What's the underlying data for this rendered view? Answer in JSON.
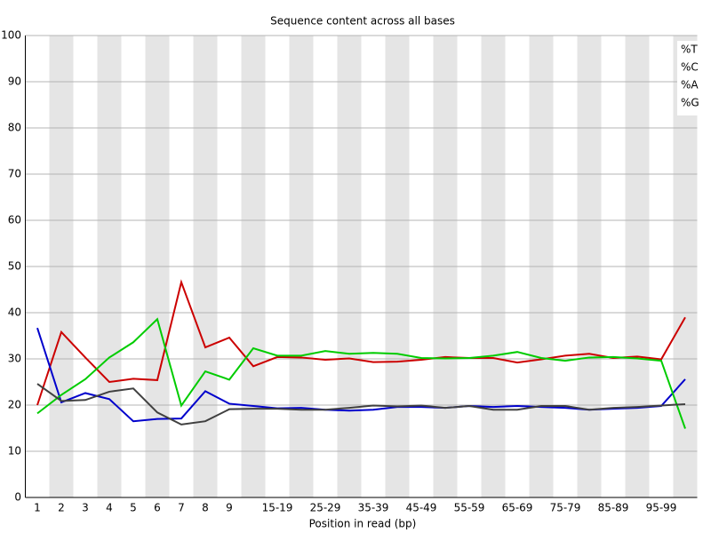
{
  "chart_data": {
    "type": "line",
    "title": "Sequence content across all bases",
    "x_label": "Position in read (bp)",
    "categories": [
      "1",
      "2",
      "3",
      "4",
      "5",
      "6",
      "7",
      "8",
      "9",
      null,
      "15-19",
      null,
      "25-29",
      null,
      "35-39",
      null,
      "45-49",
      null,
      "55-59",
      null,
      "65-69",
      null,
      "75-79",
      null,
      "85-89",
      null,
      "95-99",
      null
    ],
    "series": [
      {
        "name": "%T",
        "color": "#cc0000",
        "values": [
          20,
          35.8,
          30.3,
          25,
          25.7,
          25.4,
          46.6,
          32.5,
          34.6,
          28.4,
          30.4,
          30.3,
          29.8,
          30.1,
          29.3,
          29.4,
          29.8,
          30.4,
          30.2,
          30.2,
          29.2,
          29.9,
          30.7,
          31.1,
          30.2,
          30.5,
          29.9,
          39
        ]
      },
      {
        "name": "%C",
        "color": "#0000cc",
        "values": [
          36.7,
          20.6,
          22.6,
          21.3,
          16.5,
          17,
          17.1,
          23,
          20.3,
          19.8,
          19.3,
          19.4,
          19,
          18.8,
          19,
          19.6,
          19.6,
          19.4,
          19.8,
          19.6,
          19.8,
          19.6,
          19.4,
          19,
          19.2,
          19.4,
          19.8,
          25.6
        ]
      },
      {
        "name": "%A",
        "color": "#00cc00",
        "values": [
          18.2,
          22.2,
          25.6,
          30.3,
          33.6,
          38.6,
          19.9,
          27.3,
          25.5,
          32.3,
          30.7,
          30.7,
          31.7,
          31.1,
          31.3,
          31.1,
          30.2,
          30.1,
          30.2,
          30.7,
          31.5,
          30.2,
          29.6,
          30.3,
          30.4,
          30.1,
          29.6,
          14.9
        ]
      },
      {
        "name": "%G",
        "color": "#404040",
        "values": [
          24.6,
          20.9,
          21.1,
          22.9,
          23.6,
          18.4,
          15.8,
          16.5,
          19.1,
          19.2,
          19.2,
          19,
          19,
          19.4,
          19.9,
          19.7,
          19.9,
          19.4,
          19.8,
          19,
          19,
          19.8,
          19.8,
          19,
          19.4,
          19.6,
          19.9,
          20.2
        ]
      }
    ],
    "ylim": [
      0,
      100
    ],
    "yticks": [
      0,
      10,
      20,
      30,
      40,
      50,
      60,
      70,
      80,
      90,
      100
    ],
    "grid": true,
    "legend": "top-right"
  }
}
